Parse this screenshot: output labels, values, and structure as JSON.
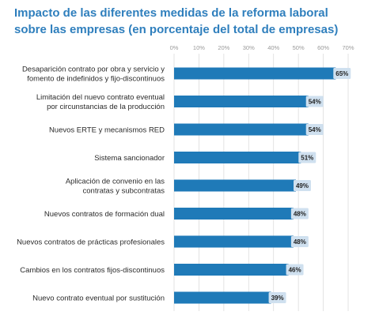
{
  "title_lines": [
    "Impacto de las diferentes medidas de la reforma laboral",
    "sobre las empresas (en porcentaje del total de empresas)"
  ],
  "colors": {
    "title": "#2f7fbd",
    "bar": "#1f7ab8",
    "label_box": "#cfe0ef",
    "grid": "#dcdcdc"
  },
  "chart_data": {
    "type": "bar",
    "orientation": "horizontal",
    "title": "Impacto de las diferentes medidas de la reforma laboral sobre las empresas (en porcentaje del total de empresas)",
    "xlim": [
      0,
      70
    ],
    "ticks": [
      0,
      10,
      20,
      30,
      40,
      50,
      60,
      70
    ],
    "tick_labels": [
      "0%",
      "10%",
      "20%",
      "30%",
      "40%",
      "50%",
      "60%",
      "70%"
    ],
    "grid": true,
    "categories": [
      [
        "Desaparición contrato por obra y servicio y",
        "fomento de indefinidos y fijo-discontinuos"
      ],
      [
        "Limitación del nuevo contrato eventual",
        "por circunstancias de la producción"
      ],
      [
        "Nuevos ERTE y mecanismos RED"
      ],
      [
        "Sistema sancionador"
      ],
      [
        "Aplicación de convenio en las",
        "contratas y subcontratas"
      ],
      [
        "Nuevos contratos de formación dual"
      ],
      [
        "Nuevos contratos de prácticas profesionales"
      ],
      [
        "Cambios en los contratos fijos-discontinuos"
      ],
      [
        "Nuevo contrato eventual por sustitución"
      ]
    ],
    "values": [
      65,
      54,
      54,
      51,
      49,
      48,
      48,
      46,
      39
    ],
    "value_labels": [
      "65%",
      "54%",
      "54%",
      "51%",
      "49%",
      "48%",
      "48%",
      "46%",
      "39%"
    ]
  }
}
